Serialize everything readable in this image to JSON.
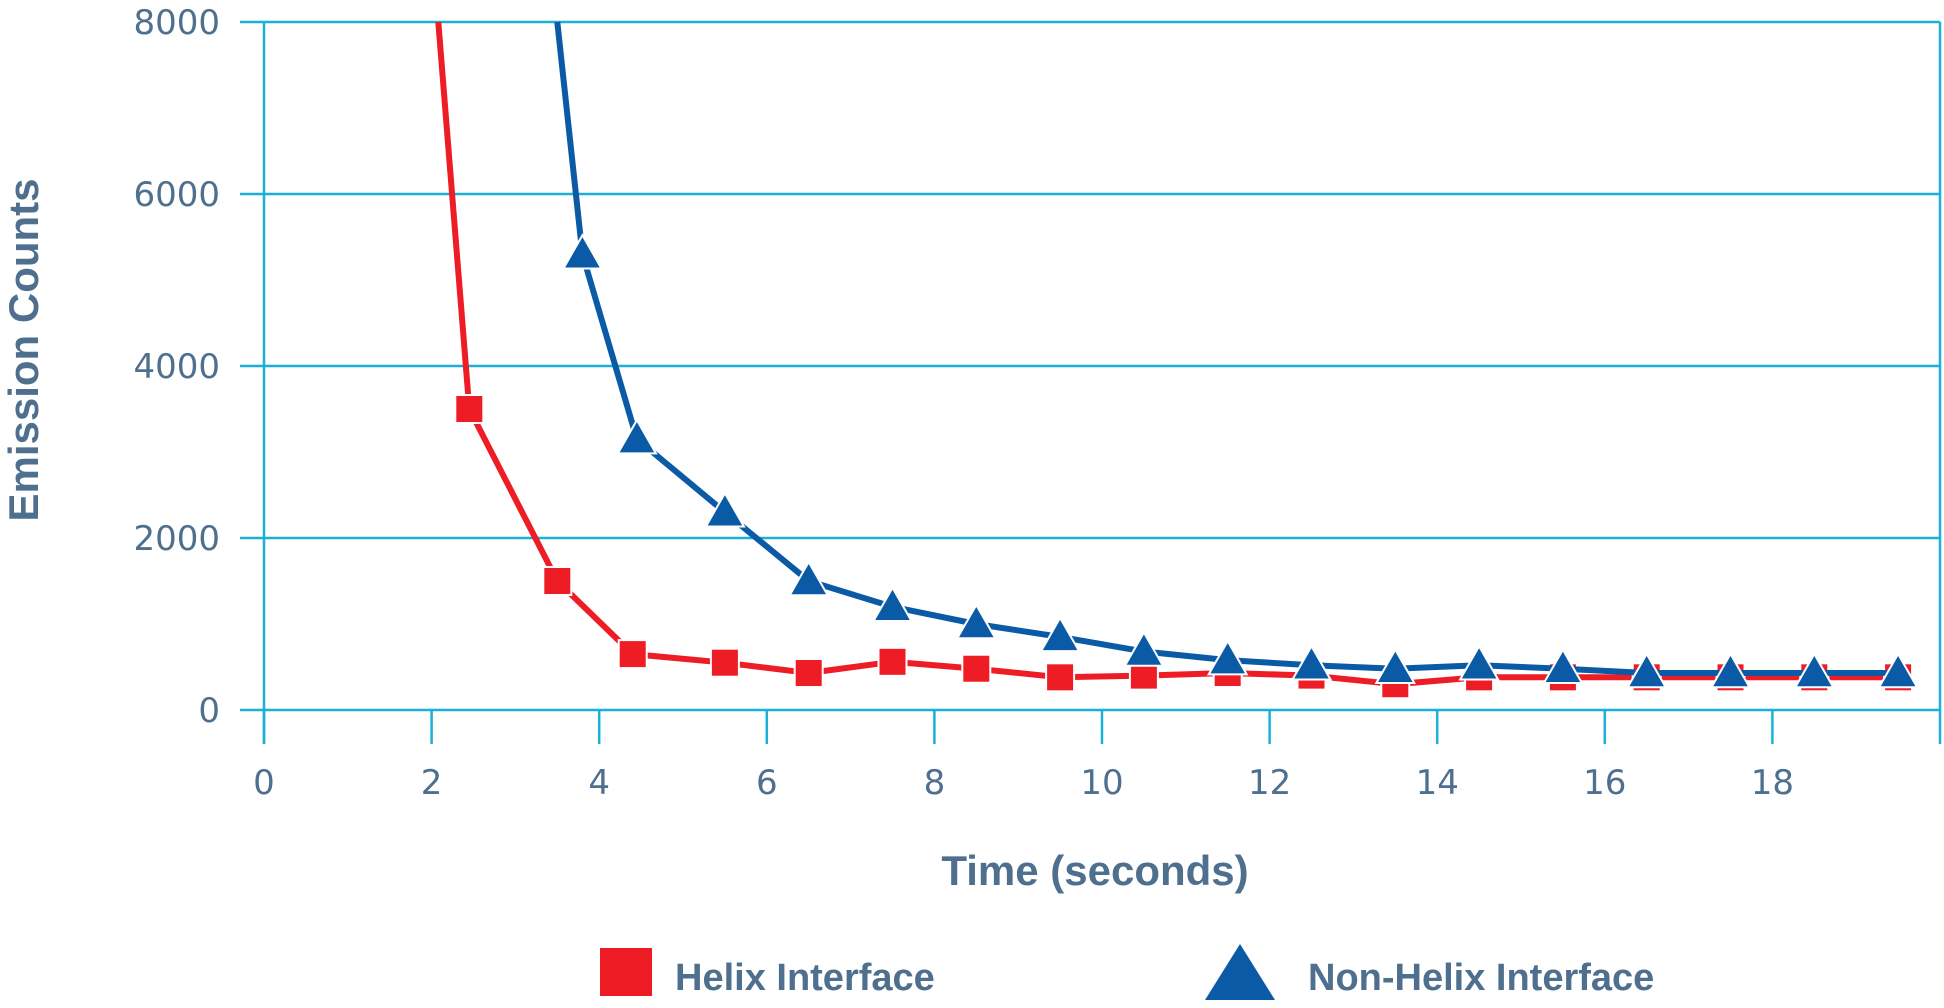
{
  "chart_data": {
    "type": "line",
    "title": "",
    "xlabel": "Time (seconds)",
    "ylabel": "Emission Counts",
    "xlim": [
      0,
      20
    ],
    "ylim": [
      0,
      8000
    ],
    "x_ticks": [
      0,
      2,
      4,
      6,
      8,
      10,
      12,
      14,
      16,
      18
    ],
    "y_ticks": [
      0,
      2000,
      4000,
      6000,
      8000
    ],
    "x_tick_labels": [
      "0",
      "2",
      "4",
      "6",
      "8",
      "10",
      "12",
      "14",
      "16",
      "18"
    ],
    "y_tick_labels": [
      "0",
      "2000",
      "4000",
      "6000",
      "8000"
    ],
    "grid": "horizontal",
    "legend_position": "bottom",
    "series": [
      {
        "name": "Helix Interface",
        "color": "#ee1c25",
        "marker": "square",
        "line": [
          {
            "x": 2.08,
            "y": 8000
          },
          {
            "x": 2.45,
            "y": 3500
          },
          {
            "x": 3.5,
            "y": 1500
          },
          {
            "x": 4.4,
            "y": 650
          },
          {
            "x": 5.5,
            "y": 550
          },
          {
            "x": 6.5,
            "y": 430
          },
          {
            "x": 7.5,
            "y": 560
          },
          {
            "x": 8.5,
            "y": 480
          },
          {
            "x": 9.5,
            "y": 380
          },
          {
            "x": 10.5,
            "y": 400
          },
          {
            "x": 11.5,
            "y": 430
          },
          {
            "x": 12.5,
            "y": 400
          },
          {
            "x": 13.5,
            "y": 300
          },
          {
            "x": 14.5,
            "y": 380
          },
          {
            "x": 15.5,
            "y": 380
          },
          {
            "x": 16.5,
            "y": 380
          },
          {
            "x": 17.5,
            "y": 380
          },
          {
            "x": 18.5,
            "y": 380
          },
          {
            "x": 19.5,
            "y": 380
          }
        ],
        "marked_indices": [
          1,
          2,
          3,
          4,
          5,
          6,
          7,
          8,
          9,
          10,
          11,
          12,
          13,
          14,
          15,
          16,
          17,
          18
        ]
      },
      {
        "name": "Non-Helix Interface",
        "color": "#0b5aa6",
        "marker": "triangle",
        "line": [
          {
            "x": 3.5,
            "y": 8000
          },
          {
            "x": 3.8,
            "y": 5300
          },
          {
            "x": 4.45,
            "y": 3150
          },
          {
            "x": 5.5,
            "y": 2300
          },
          {
            "x": 6.5,
            "y": 1500
          },
          {
            "x": 7.5,
            "y": 1200
          },
          {
            "x": 8.5,
            "y": 1000
          },
          {
            "x": 9.5,
            "y": 850
          },
          {
            "x": 10.5,
            "y": 680
          },
          {
            "x": 11.5,
            "y": 580
          },
          {
            "x": 12.5,
            "y": 520
          },
          {
            "x": 13.5,
            "y": 480
          },
          {
            "x": 14.5,
            "y": 520
          },
          {
            "x": 15.5,
            "y": 480
          },
          {
            "x": 16.5,
            "y": 430
          },
          {
            "x": 17.5,
            "y": 430
          },
          {
            "x": 18.5,
            "y": 430
          },
          {
            "x": 19.5,
            "y": 430
          }
        ],
        "marked_indices": [
          1,
          2,
          3,
          4,
          5,
          6,
          7,
          8,
          9,
          10,
          11,
          12,
          13,
          14,
          15,
          16,
          17
        ]
      }
    ],
    "colors": {
      "axis": "#1ab0d8",
      "text": "#4f6f8f"
    }
  }
}
